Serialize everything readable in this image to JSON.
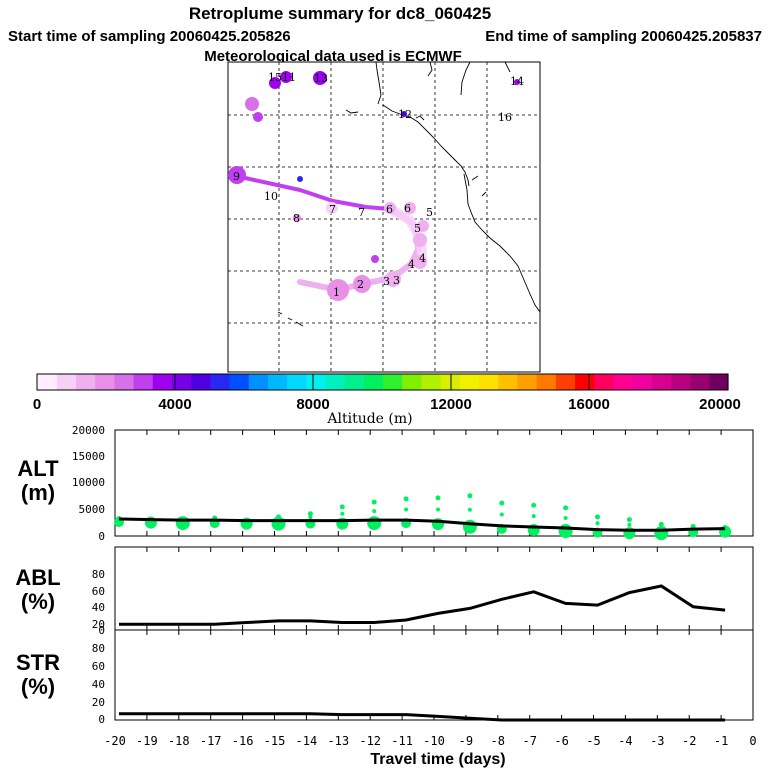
{
  "header": {
    "title": "Retroplume summary for dc8_060425",
    "start_sampling": "Start time of sampling 20060425.205826",
    "end_sampling": "End time of sampling 20060425.205837",
    "met_data": "Meteorological data used is ECMWF"
  },
  "colorbar": {
    "label": "Altitude (m)",
    "ticks": [
      "0",
      "4000",
      "8000",
      "12000",
      "16000",
      "20000"
    ],
    "colors": [
      "#ffeeff",
      "#f7d0f7",
      "#efb0ef",
      "#e890e8",
      "#d870e8",
      "#c040f0",
      "#a000f0",
      "#7800e8",
      "#5000e0",
      "#2828f0",
      "#0050ff",
      "#0090ff",
      "#00b8ff",
      "#00d8ff",
      "#00f0f0",
      "#00f0c0",
      "#00f090",
      "#00f060",
      "#30f030",
      "#80f000",
      "#b0f000",
      "#d8f000",
      "#f0f000",
      "#ffe000",
      "#ffc000",
      "#ffa000",
      "#ff7800",
      "#ff4000",
      "#ff0000",
      "#ff0060",
      "#ff0090",
      "#f000a0",
      "#d80090",
      "#b80080",
      "#980070",
      "#700060"
    ]
  },
  "map": {
    "trajectory_labels": [
      "1",
      "2",
      "3",
      "3",
      "4",
      "4",
      "5",
      "5",
      "6",
      "6",
      "7",
      "7",
      "8",
      "9",
      "10",
      "11",
      "12",
      "13",
      "14",
      "15",
      "16"
    ]
  },
  "chart_data": [
    {
      "type": "line",
      "panel": "ALT",
      "ylabel": "ALT (m)",
      "title": "",
      "x": [
        -20,
        -19,
        -18,
        -17,
        -16,
        -15,
        -14,
        -13,
        -12,
        -11,
        -10,
        -9,
        -8,
        -7,
        -6,
        -5,
        -4,
        -3,
        -2,
        -1
      ],
      "ylim": [
        0,
        20000
      ],
      "yticks": [
        "20000",
        "15000",
        "10000",
        "5000",
        "0"
      ],
      "series": [
        {
          "name": "median altitude",
          "values": [
            3200,
            3100,
            3000,
            3000,
            2900,
            2900,
            2900,
            2900,
            3000,
            3000,
            2800,
            2300,
            1900,
            1700,
            1500,
            1200,
            1100,
            1100,
            1300,
            1400
          ]
        },
        {
          "name": "plume spread",
          "values": [
            3300,
            3200,
            3000,
            3400,
            3000,
            3600,
            4200,
            5500,
            6400,
            7000,
            7200,
            7600,
            6200,
            5800,
            5300,
            3600,
            3100,
            2200,
            1800,
            1600
          ]
        }
      ]
    },
    {
      "type": "line",
      "panel": "ABL",
      "ylabel": "ABL (%)",
      "x": [
        -20,
        -19,
        -18,
        -17,
        -16,
        -15,
        -14,
        -13,
        -12,
        -11,
        -10,
        -9,
        -8,
        -7,
        -6,
        -5,
        -4,
        -3,
        -2,
        -1
      ],
      "ylim": [
        0,
        100
      ],
      "yticks": [
        "80",
        "60",
        "40",
        "20",
        "0"
      ],
      "series": [
        {
          "name": "ABL fraction",
          "values": [
            7,
            7,
            7,
            7,
            9,
            11,
            11,
            9,
            9,
            12,
            20,
            26,
            37,
            46,
            32,
            30,
            45,
            53,
            28,
            24
          ]
        }
      ]
    },
    {
      "type": "line",
      "panel": "STR",
      "ylabel": "STR (%)",
      "xlabel": "Travel time (days)",
      "x": [
        -20,
        -19,
        -18,
        -17,
        -16,
        -15,
        -14,
        -13,
        -12,
        -11,
        -10,
        -9,
        -8,
        -7,
        -6,
        -5,
        -4,
        -3,
        -2,
        -1
      ],
      "xticks": [
        "-20",
        "-19",
        "-18",
        "-17",
        "-16",
        "-15",
        "-14",
        "-13",
        "-12",
        "-11",
        "-10",
        "-9",
        "-8",
        "-7",
        "-6",
        "-5",
        "-4",
        "-3",
        "-2",
        "-1",
        "0"
      ],
      "ylim": [
        0,
        100
      ],
      "yticks": [
        "80",
        "60",
        "40",
        "20",
        "0"
      ],
      "series": [
        {
          "name": "stratospheric fraction",
          "values": [
            7,
            7,
            7,
            7,
            7,
            7,
            7,
            6,
            6,
            6,
            4,
            2,
            0,
            0,
            0,
            0,
            0,
            0,
            0,
            0
          ]
        }
      ]
    }
  ],
  "panel_labels": {
    "alt_a": "ALT",
    "alt_b": "(m)",
    "abl_a": "ABL",
    "abl_b": "(%)",
    "str_a": "STR",
    "str_b": "(%)"
  },
  "xlabel": "Travel time (days)"
}
